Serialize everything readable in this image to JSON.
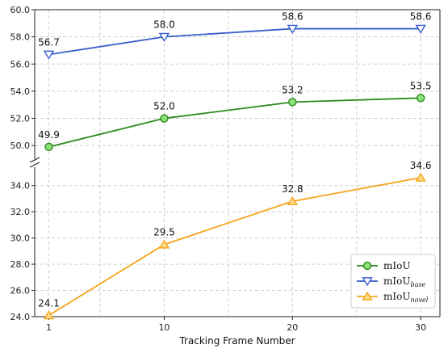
{
  "chart_data": {
    "type": "line",
    "xlabel": "Tracking Frame Number",
    "x": [
      1,
      10,
      20,
      30
    ],
    "x_ticks": [
      "1",
      "10",
      "20",
      "30"
    ],
    "grid": true,
    "legend_placement": "bottom-right",
    "broken_axis": true,
    "panels": [
      {
        "name": "upper",
        "ylim": [
          49.0,
          60.0
        ],
        "y_ticks": [
          "50.0",
          "52.0",
          "54.0",
          "56.0",
          "58.0",
          "60.0"
        ]
      },
      {
        "name": "lower",
        "ylim": [
          24.0,
          35.4
        ],
        "y_ticks": [
          "24.0",
          "26.0",
          "28.0",
          "30.0",
          "32.0",
          "34.0"
        ]
      }
    ],
    "series": [
      {
        "legend_main": "mIoU",
        "legend_sub": "",
        "color": "#2b8a1c",
        "marker": "circle",
        "panel": "upper",
        "values": [
          49.9,
          52.0,
          53.2,
          53.5
        ],
        "labels": [
          "49.9",
          "52.0",
          "53.2",
          "53.5"
        ]
      },
      {
        "legend_main": "mIoU",
        "legend_sub": "base",
        "color": "#3a5fcd",
        "marker": "triangle-down",
        "panel": "upper",
        "values": [
          56.7,
          58.0,
          58.6,
          58.6
        ],
        "labels": [
          "56.7",
          "58.0",
          "58.6",
          "58.6"
        ]
      },
      {
        "legend_main": "mIoU",
        "legend_sub": "novel",
        "color": "#f5a51c",
        "marker": "triangle-up",
        "panel": "lower",
        "values": [
          24.1,
          29.5,
          32.8,
          34.6
        ],
        "labels": [
          "24.1",
          "29.5",
          "32.8",
          "34.6"
        ]
      }
    ]
  }
}
